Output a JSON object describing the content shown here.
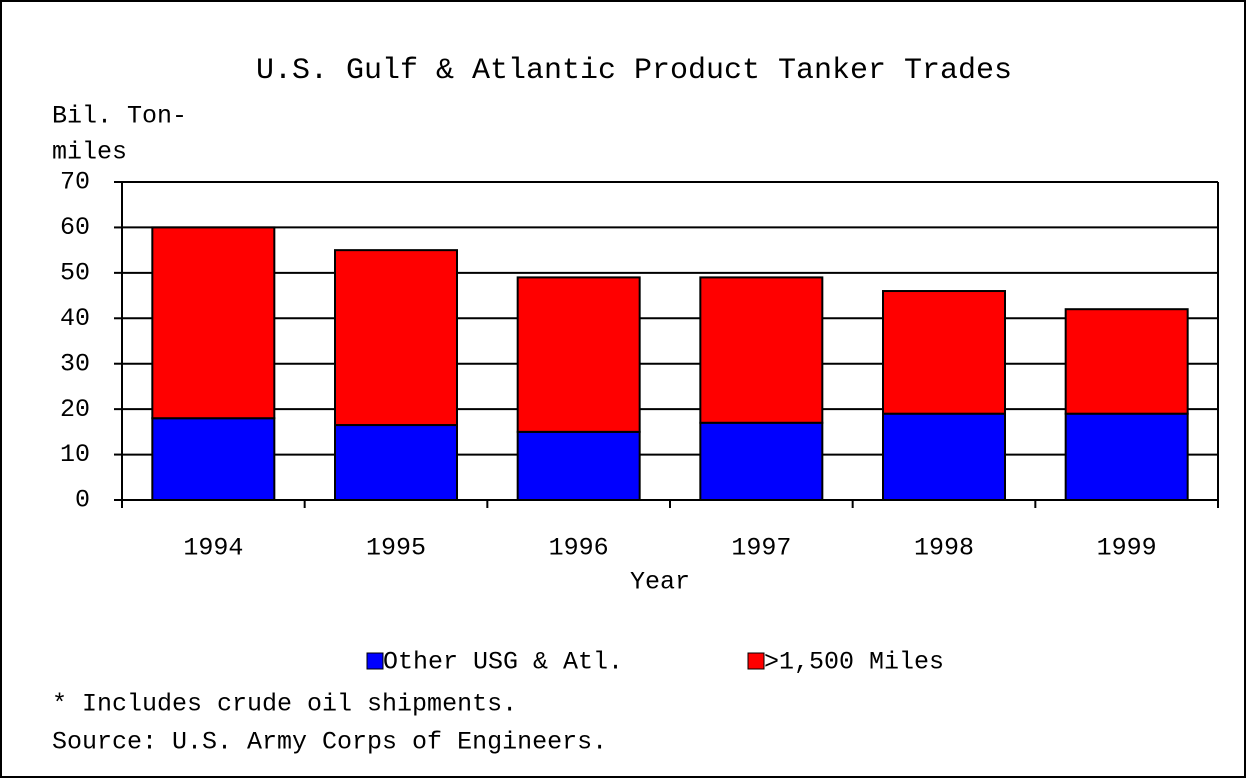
{
  "chart_data": {
    "type": "stacked_bar",
    "title": "U.S. Gulf & Atlantic Product Tanker Trades",
    "ylabel": [
      "Bil. Ton-",
      "miles"
    ],
    "xlabel": "Year",
    "categories": [
      "1994",
      "1995",
      "1996",
      "1997",
      "1998",
      "1999"
    ],
    "series": [
      {
        "name": "Other USG & Atl.",
        "color": "#0000ff",
        "values": [
          18,
          16.5,
          15,
          17,
          19,
          19
        ]
      },
      {
        "name": ">1,500 Miles",
        "color": "#ff0000",
        "values": [
          42,
          38.5,
          34,
          32,
          27,
          23
        ]
      }
    ],
    "ylim": [
      0,
      70
    ],
    "yticks": [
      0,
      10,
      20,
      30,
      40,
      50,
      60,
      70
    ],
    "grid": true,
    "legend": "bottom",
    "notes": [
      "* Includes crude oil shipments.",
      "Source: U.S. Army Corps of Engineers."
    ]
  }
}
